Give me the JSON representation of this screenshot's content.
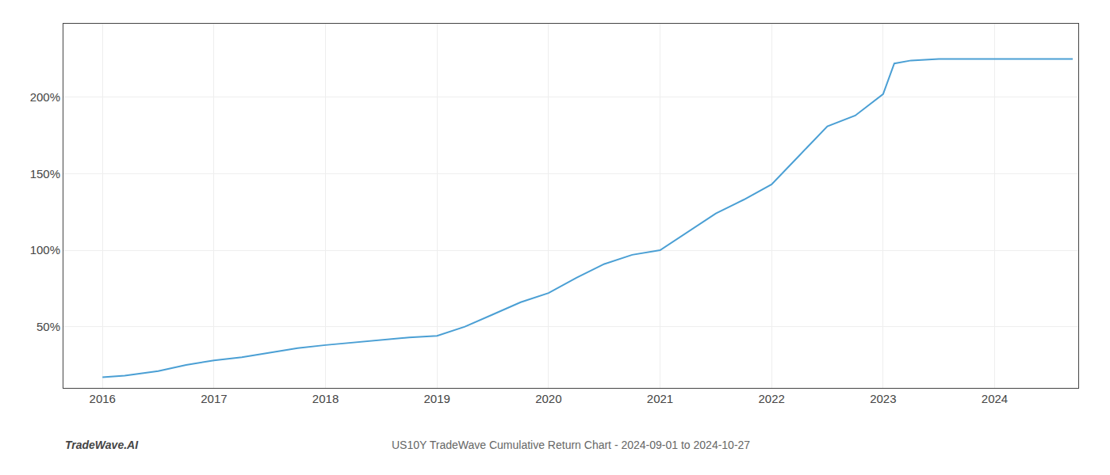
{
  "chart_data": {
    "type": "line",
    "title": "US10Y TradeWave Cumulative Return Chart - 2024-09-01 to 2024-10-27",
    "annotations": [
      "TradeWave.AI"
    ],
    "x": [
      2016.0,
      2016.2,
      2016.5,
      2016.75,
      2017.0,
      2017.25,
      2017.5,
      2017.75,
      2018.0,
      2018.15,
      2018.3,
      2018.5,
      2018.75,
      2019.0,
      2019.25,
      2019.5,
      2019.75,
      2020.0,
      2020.25,
      2020.5,
      2020.75,
      2021.0,
      2021.25,
      2021.5,
      2021.75,
      2022.0,
      2022.25,
      2022.5,
      2022.75,
      2023.0,
      2023.1,
      2023.25,
      2023.5,
      2023.75,
      2024.0,
      2024.2,
      2024.5,
      2024.7
    ],
    "values": [
      17,
      18,
      21,
      25,
      28,
      30,
      33,
      36,
      38,
      39,
      40,
      41,
      43,
      44,
      50,
      58,
      66,
      72,
      82,
      91,
      97,
      100,
      112,
      124,
      133,
      143,
      162,
      181,
      188,
      202,
      222,
      224,
      225,
      225,
      225,
      225,
      225,
      225
    ],
    "color": "#4a9fd4",
    "xlim": [
      2015.65,
      2024.75
    ],
    "ylim": [
      10,
      248
    ],
    "xticks": [
      2016,
      2017,
      2018,
      2019,
      2020,
      2021,
      2022,
      2023,
      2024
    ],
    "yticks": [
      {
        "value": 50,
        "label": "50%"
      },
      {
        "value": 100,
        "label": "100%"
      },
      {
        "value": 150,
        "label": "150%"
      },
      {
        "value": 200,
        "label": "200%"
      }
    ],
    "grid": true
  }
}
